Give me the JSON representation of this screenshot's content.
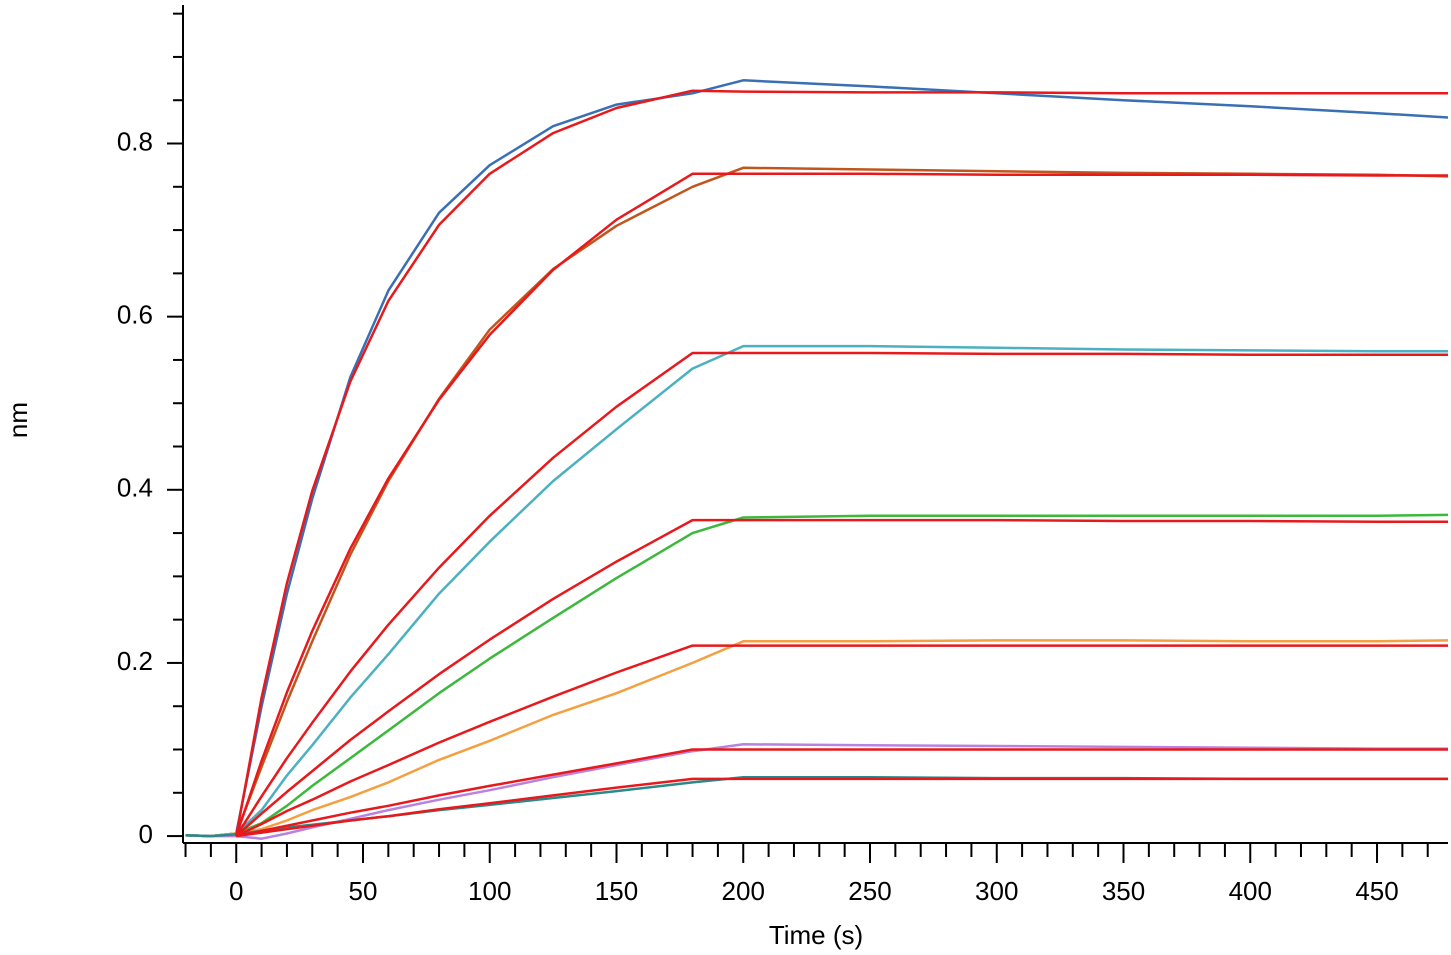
{
  "chart_data": {
    "type": "line",
    "x_label": "Time (s)",
    "y_label": "nm",
    "x": [
      -20,
      -10,
      0,
      10,
      20,
      30,
      45,
      60,
      80,
      100,
      125,
      150,
      180,
      200,
      250,
      300,
      350,
      400,
      450,
      478
    ],
    "xlim": [
      -21,
      478
    ],
    "xticks": [
      0,
      50,
      100,
      150,
      200,
      250,
      300,
      350,
      400,
      450
    ],
    "xminorticks": [
      -20,
      -10,
      10,
      20,
      30,
      40,
      60,
      70,
      80,
      90,
      110,
      120,
      130,
      140,
      160,
      170,
      180,
      190,
      210,
      220,
      230,
      240,
      260,
      270,
      280,
      290,
      310,
      320,
      330,
      340,
      360,
      370,
      380,
      390,
      410,
      420,
      430,
      440,
      460,
      470
    ],
    "ylim": [
      -0.008,
      0.96
    ],
    "yticks": [
      0,
      0.2,
      0.4,
      0.6,
      0.8
    ],
    "yminorticks": [
      0.05,
      0.1,
      0.15,
      0.25,
      0.3,
      0.35,
      0.45,
      0.5,
      0.55,
      0.65,
      0.7,
      0.75,
      0.85,
      0.9,
      0.95
    ],
    "series": [
      {
        "color": "#3a6fb4",
        "values": [
          0.001,
          0.0,
          0.003,
          0.15,
          0.28,
          0.39,
          0.53,
          0.63,
          0.72,
          0.775,
          0.82,
          0.845,
          0.858,
          0.873,
          0.866,
          0.858,
          0.85,
          0.843,
          0.835,
          0.83
        ]
      },
      {
        "color": "#c0561c",
        "values": [
          0.001,
          0.0,
          0.003,
          0.08,
          0.155,
          0.225,
          0.325,
          0.41,
          0.505,
          0.585,
          0.655,
          0.705,
          0.75,
          0.772,
          0.77,
          0.768,
          0.766,
          0.765,
          0.764,
          0.762
        ]
      },
      {
        "color": "#4bb0c0",
        "values": [
          0.001,
          0.0,
          0.003,
          0.03,
          0.07,
          0.105,
          0.16,
          0.21,
          0.28,
          0.34,
          0.41,
          0.47,
          0.54,
          0.566,
          0.566,
          0.564,
          0.562,
          0.561,
          0.56,
          0.56
        ]
      },
      {
        "color": "#3cb83c",
        "values": [
          0.001,
          0.0,
          0.003,
          0.015,
          0.035,
          0.058,
          0.09,
          0.122,
          0.165,
          0.205,
          0.252,
          0.298,
          0.35,
          0.368,
          0.37,
          0.37,
          0.37,
          0.37,
          0.37,
          0.371
        ]
      },
      {
        "color": "#f5a040",
        "values": [
          0.001,
          0.0,
          0.003,
          0.008,
          0.018,
          0.03,
          0.045,
          0.062,
          0.088,
          0.11,
          0.14,
          0.165,
          0.2,
          0.225,
          0.225,
          0.226,
          0.226,
          0.225,
          0.225,
          0.226
        ]
      },
      {
        "color": "#b882e0",
        "values": [
          0.001,
          0.0,
          0.0,
          -0.003,
          0.003,
          0.01,
          0.02,
          0.03,
          0.042,
          0.053,
          0.068,
          0.082,
          0.098,
          0.106,
          0.105,
          0.104,
          0.103,
          0.102,
          0.101,
          0.101
        ]
      },
      {
        "color": "#2a8a8a",
        "values": [
          0.001,
          0.0,
          0.002,
          0.006,
          0.01,
          0.013,
          0.018,
          0.023,
          0.03,
          0.036,
          0.044,
          0.052,
          0.062,
          0.068,
          0.068,
          0.067,
          0.067,
          0.066,
          0.066,
          0.066
        ]
      },
      {
        "color": "#e8191c",
        "values": [
          null,
          null,
          0,
          0.16,
          0.292,
          0.399,
          0.525,
          0.618,
          0.706,
          0.765,
          0.812,
          0.841,
          0.861,
          0.86,
          0.859,
          0.859,
          0.858,
          0.858,
          0.858,
          0.858
        ]
      },
      {
        "color": "#e8191c",
        "values": [
          null,
          null,
          0,
          0.087,
          0.166,
          0.237,
          0.332,
          0.413,
          0.504,
          0.579,
          0.654,
          0.712,
          0.765,
          0.765,
          0.765,
          0.764,
          0.764,
          0.764,
          0.763,
          0.763
        ]
      },
      {
        "color": "#e8191c",
        "values": [
          null,
          null,
          0,
          0.046,
          0.09,
          0.131,
          0.19,
          0.244,
          0.31,
          0.37,
          0.437,
          0.496,
          0.558,
          0.558,
          0.558,
          0.557,
          0.557,
          0.556,
          0.556,
          0.556
        ]
      },
      {
        "color": "#e8191c",
        "values": [
          null,
          null,
          0,
          0.026,
          0.051,
          0.075,
          0.111,
          0.144,
          0.187,
          0.227,
          0.274,
          0.317,
          0.365,
          0.365,
          0.365,
          0.365,
          0.364,
          0.364,
          0.363,
          0.363
        ]
      },
      {
        "color": "#e8191c",
        "values": [
          null,
          null,
          0,
          0.014,
          0.029,
          0.042,
          0.063,
          0.082,
          0.108,
          0.132,
          0.161,
          0.189,
          0.22,
          0.22,
          0.22,
          0.22,
          0.22,
          0.22,
          0.22,
          0.22
        ]
      },
      {
        "color": "#e8191c",
        "values": [
          null,
          null,
          0,
          0.006,
          0.012,
          0.018,
          0.027,
          0.035,
          0.047,
          0.058,
          0.071,
          0.084,
          0.1,
          0.1,
          0.1,
          0.1,
          0.1,
          0.1,
          0.1,
          0.1
        ]
      },
      {
        "color": "#e8191c",
        "values": [
          null,
          null,
          0,
          0.004,
          0.008,
          0.012,
          0.018,
          0.023,
          0.031,
          0.038,
          0.047,
          0.056,
          0.066,
          0.066,
          0.066,
          0.066,
          0.066,
          0.066,
          0.066,
          0.066
        ]
      }
    ]
  }
}
